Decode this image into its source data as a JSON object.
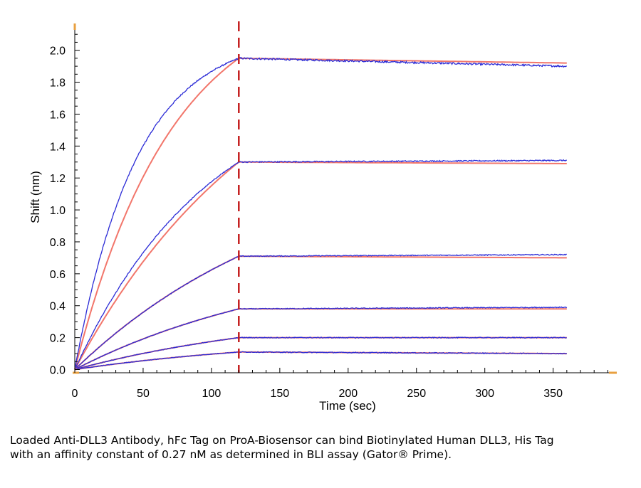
{
  "chart_data": {
    "type": "line",
    "xlabel": "Time (sec)",
    "ylabel": "Shift (nm)",
    "xlim": [
      0,
      395
    ],
    "ylim": [
      -0.02,
      2.15
    ],
    "x_ticks": [
      0,
      50,
      100,
      150,
      200,
      250,
      300,
      350
    ],
    "y_ticks": [
      0.0,
      0.2,
      0.4,
      0.6,
      0.8,
      1.0,
      1.2,
      1.4,
      1.6,
      1.8,
      2.0
    ],
    "y_tick_labels": [
      "0.0",
      "0.2",
      "0.4",
      "0.6",
      "0.8",
      "1.0",
      "1.2",
      "1.4",
      "1.6",
      "1.8",
      "2.0"
    ],
    "grid": false,
    "association_end": 120,
    "dissociation_end": 360,
    "colors": {
      "raw": "#2b2bd6",
      "fit": "#f2766b",
      "marker": "#c41e1e",
      "axis_accent": "#e8a040"
    },
    "series": [
      {
        "association_end_value": 1.95,
        "dissociation_end_value": 1.9,
        "fit_end_value": 1.92
      },
      {
        "association_end_value": 1.3,
        "dissociation_end_value": 1.31,
        "fit_end_value": 1.29
      },
      {
        "association_end_value": 0.71,
        "dissociation_end_value": 0.72,
        "fit_end_value": 0.7
      },
      {
        "association_end_value": 0.38,
        "dissociation_end_value": 0.39,
        "fit_end_value": 0.38
      },
      {
        "association_end_value": 0.2,
        "dissociation_end_value": 0.2,
        "fit_end_value": 0.2
      },
      {
        "association_end_value": 0.11,
        "dissociation_end_value": 0.1,
        "fit_end_value": 0.1
      }
    ]
  },
  "caption": "Loaded Anti-DLL3 Antibody, hFc Tag on ProA-Biosensor can bind Biotinylated Human DLL3, His Tag with an affinity constant of 0.27 nM as determined in BLI assay (Gator® Prime)."
}
